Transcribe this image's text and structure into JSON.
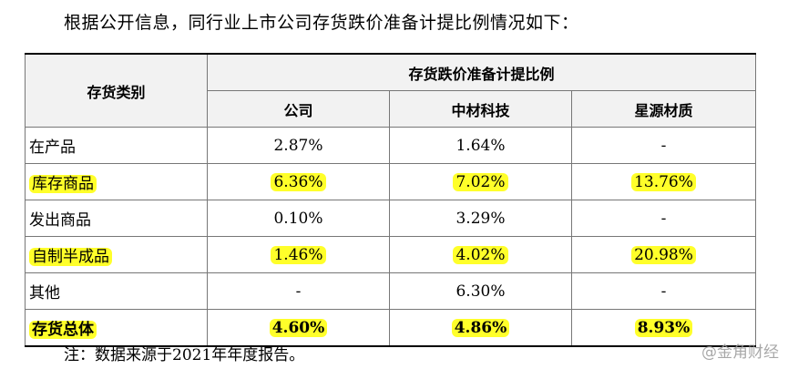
{
  "intro": "根据公开信息，同行业上市公司存货跌价准备计提比例情况如下：",
  "table": {
    "row_header": "存货类别",
    "group_header": "存货跌价准备计提比例",
    "columns": [
      "公司",
      "中材科技",
      "星源材质"
    ],
    "rows": [
      {
        "category": "在产品",
        "values": [
          "2.87%",
          "1.64%",
          "-"
        ]
      },
      {
        "category": "库存商品",
        "values": [
          "6.36%",
          "7.02%",
          "13.76%"
        ]
      },
      {
        "category": "发出商品",
        "values": [
          "0.10%",
          "3.29%",
          "-"
        ]
      },
      {
        "category": "自制半成品",
        "values": [
          "1.46%",
          "4.02%",
          "20.98%"
        ]
      },
      {
        "category": "其他",
        "values": [
          "-",
          "6.30%",
          "-"
        ]
      },
      {
        "category": "存货总体",
        "values": [
          "4.60%",
          "4.86%",
          "8.93%"
        ]
      }
    ]
  },
  "highlight_color": "#ffff2a",
  "note": "注：数据来源于2021年年度报告。",
  "watermark": "@金角财经"
}
